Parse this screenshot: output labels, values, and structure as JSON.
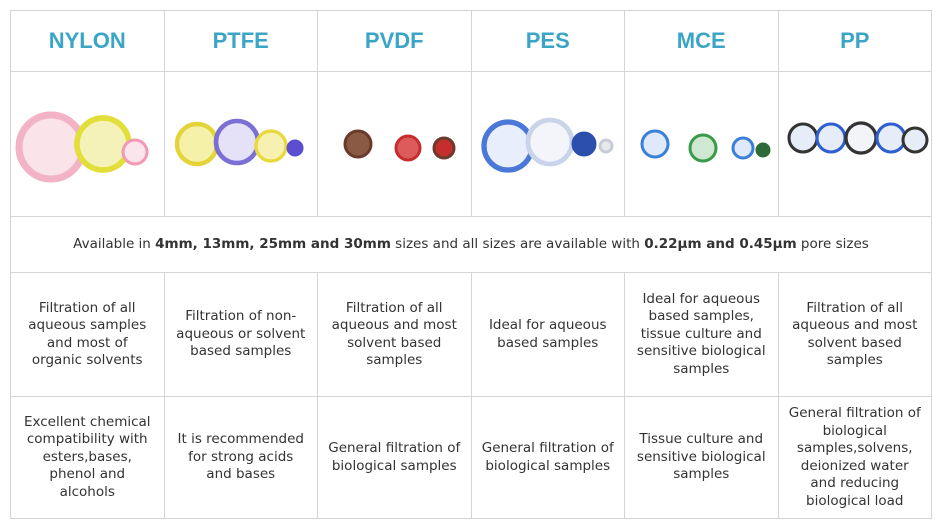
{
  "table": {
    "columns": [
      "NYLON",
      "PTFE",
      "PVDF",
      "PES",
      "MCE",
      "PP"
    ],
    "availability": [
      {
        "text": "Available in ",
        "bold": false
      },
      {
        "text": "4mm, 13mm, 25mm and 30mm",
        "bold": true
      },
      {
        "text": " sizes and all sizes are available with ",
        "bold": false
      },
      {
        "text": "0.22µm and 0.45µm",
        "bold": true
      },
      {
        "text": " pore sizes",
        "bold": false
      }
    ],
    "rows": [
      [
        "Filtration of all aqueous samples and most of organic solvents",
        "Filtration of non-aqueous or solvent based samples",
        "Filtration of all aqueous and most solvent based samples",
        "Ideal for aqueous based samples",
        "Ideal for aqueous based samples, tissue culture and sensitive biological samples",
        "Filtration of all aqueous and most solvent based samples"
      ],
      [
        "Excellent chemical compatibility with esters,bases, phenol and alcohols",
        "It is recommended for strong acids and bases",
        "General filtration of biological samples",
        "General filtration of biological samples",
        "Tissue culture and sensitive biological samples",
        "General filtration of biological samples,solvens, deionized water and reducing biological load"
      ]
    ]
  }
}
